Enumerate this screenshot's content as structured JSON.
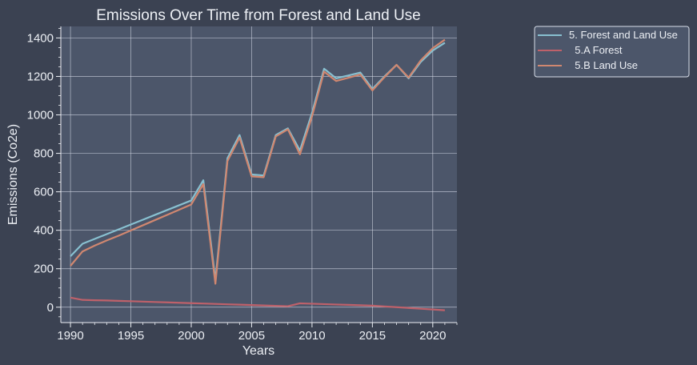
{
  "colors": {
    "page_bg": "#3b4252",
    "plot_bg": "#4c566a",
    "grid": "#d8dee9",
    "text": "#eceff4"
  },
  "chart_data": {
    "type": "line",
    "title": "Emissions Over Time from Forest and Land Use",
    "xlabel": "Years",
    "ylabel": "Emissions (Co2e)",
    "xlim": [
      1989.2,
      2022.0
    ],
    "ylim": [
      -80,
      1460
    ],
    "xticks": [
      1990,
      1995,
      2000,
      2005,
      2010,
      2015,
      2020
    ],
    "yticks": [
      0,
      200,
      400,
      600,
      800,
      1000,
      1200,
      1400
    ],
    "grid": true,
    "legend_position": "upper-right-outside",
    "x": [
      1990,
      1991,
      1992,
      1993,
      1994,
      1995,
      1996,
      1997,
      1998,
      1999,
      2000,
      2001,
      2002,
      2003,
      2004,
      2005,
      2006,
      2007,
      2008,
      2009,
      2010,
      2011,
      2012,
      2013,
      2014,
      2015,
      2016,
      2017,
      2018,
      2019,
      2020,
      2021
    ],
    "series": [
      {
        "name": "5. Forest and Land Use",
        "color": "#88c0d0",
        "values": [
          265,
          330,
          355,
          380,
          405,
          430,
          455,
          480,
          505,
          530,
          555,
          660,
          140,
          775,
          895,
          690,
          685,
          895,
          930,
          815,
          1010,
          1240,
          1190,
          1205,
          1220,
          1135,
          1200,
          1260,
          1190,
          1275,
          1335,
          1375
        ]
      },
      {
        "name": "  5.A Forest",
        "color": "#bf616a",
        "values": [
          50,
          38,
          36,
          35,
          33,
          31,
          29,
          27,
          25,
          23,
          21,
          19,
          17,
          15,
          13,
          11,
          9,
          7,
          5,
          20,
          18,
          16,
          14,
          12,
          10,
          8,
          4,
          0,
          -4,
          -8,
          -12,
          -16
        ]
      },
      {
        "name": "  5.B Land Use",
        "color": "#d08770",
        "values": [
          215,
          290,
          320,
          347,
          372,
          399,
          426,
          453,
          480,
          507,
          534,
          640,
          122,
          760,
          882,
          680,
          676,
          888,
          925,
          795,
          992,
          1225,
          1176,
          1193,
          1210,
          1127,
          1196,
          1260,
          1194,
          1283,
          1347,
          1391
        ]
      }
    ]
  }
}
